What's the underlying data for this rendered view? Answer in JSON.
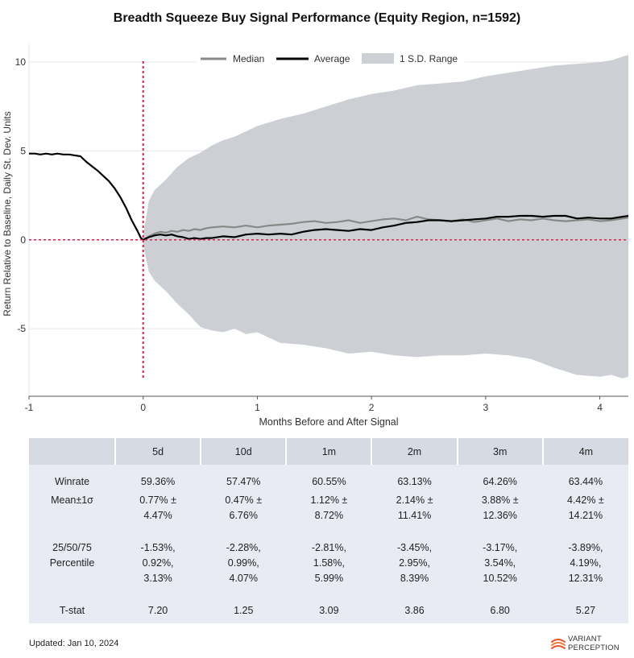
{
  "title": "Breadth Squeeze Buy Signal Performance (Equity Region, n=1592)",
  "chart_data": {
    "type": "line",
    "title": "Breadth Squeeze Buy Signal Performance (Equity Region, n=1592)",
    "xlabel": "Months Before and After Signal",
    "ylabel": "Return Relative to Baseline, Daily St. Dev. Units",
    "xlim": [
      -1,
      4.25
    ],
    "ylim": [
      -8.8,
      11
    ],
    "x_ticks": [
      -1,
      0,
      1,
      2,
      3,
      4
    ],
    "y_ticks": [
      -5,
      0,
      5,
      10
    ],
    "grid": "horizontal",
    "legend_position": "top-center",
    "signal_line_x": 0,
    "zero_line_y": 0,
    "series": [
      {
        "name": "Median",
        "color": "#888888",
        "x": [
          0,
          0.05,
          0.1,
          0.15,
          0.2,
          0.25,
          0.3,
          0.35,
          0.4,
          0.45,
          0.5,
          0.55,
          0.6,
          0.7,
          0.8,
          0.9,
          1.0,
          1.1,
          1.2,
          1.3,
          1.4,
          1.5,
          1.6,
          1.7,
          1.8,
          1.9,
          2.0,
          2.1,
          2.2,
          2.3,
          2.4,
          2.5,
          2.6,
          2.7,
          2.8,
          2.9,
          3.0,
          3.1,
          3.2,
          3.3,
          3.4,
          3.5,
          3.6,
          3.7,
          3.8,
          3.9,
          4.0,
          4.1,
          4.2,
          4.25
        ],
        "values": [
          0.0,
          0.2,
          0.35,
          0.45,
          0.4,
          0.5,
          0.45,
          0.55,
          0.5,
          0.6,
          0.55,
          0.65,
          0.7,
          0.75,
          0.7,
          0.8,
          0.7,
          0.8,
          0.85,
          0.9,
          1.0,
          1.05,
          0.95,
          1.0,
          1.1,
          0.95,
          1.05,
          1.15,
          1.2,
          1.1,
          1.3,
          1.15,
          1.1,
          1.05,
          1.15,
          1.0,
          1.1,
          1.2,
          1.05,
          1.15,
          1.1,
          1.2,
          1.1,
          1.05,
          1.1,
          1.15,
          1.05,
          1.1,
          1.2,
          1.25
        ]
      },
      {
        "name": "Average",
        "color": "#000000",
        "x": [
          -1,
          -0.95,
          -0.9,
          -0.85,
          -0.8,
          -0.75,
          -0.7,
          -0.65,
          -0.6,
          -0.55,
          -0.5,
          -0.45,
          -0.4,
          -0.35,
          -0.3,
          -0.25,
          -0.2,
          -0.15,
          -0.1,
          -0.05,
          -0.02,
          0,
          0.05,
          0.1,
          0.15,
          0.2,
          0.25,
          0.3,
          0.35,
          0.4,
          0.45,
          0.5,
          0.55,
          0.6,
          0.7,
          0.8,
          0.9,
          1.0,
          1.1,
          1.2,
          1.3,
          1.4,
          1.5,
          1.6,
          1.7,
          1.8,
          1.9,
          2.0,
          2.1,
          2.2,
          2.3,
          2.4,
          2.5,
          2.6,
          2.7,
          2.8,
          2.9,
          3.0,
          3.1,
          3.2,
          3.3,
          3.4,
          3.5,
          3.6,
          3.7,
          3.8,
          3.9,
          4.0,
          4.1,
          4.2,
          4.25
        ],
        "values": [
          4.85,
          4.85,
          4.8,
          4.85,
          4.8,
          4.85,
          4.8,
          4.8,
          4.75,
          4.7,
          4.4,
          4.15,
          3.9,
          3.6,
          3.3,
          2.9,
          2.4,
          1.8,
          1.1,
          0.5,
          0.1,
          0.0,
          0.15,
          0.25,
          0.3,
          0.25,
          0.3,
          0.2,
          0.15,
          0.05,
          0.1,
          0.05,
          0.1,
          0.1,
          0.2,
          0.15,
          0.3,
          0.35,
          0.3,
          0.35,
          0.3,
          0.45,
          0.55,
          0.6,
          0.55,
          0.5,
          0.6,
          0.55,
          0.7,
          0.8,
          0.95,
          1.0,
          1.1,
          1.1,
          1.05,
          1.1,
          1.15,
          1.2,
          1.3,
          1.3,
          1.35,
          1.35,
          1.3,
          1.35,
          1.35,
          1.2,
          1.25,
          1.2,
          1.2,
          1.3,
          1.35
        ]
      },
      {
        "name": "1 S.D. Range",
        "color": "#ccd0d5",
        "type": "area",
        "x": [
          0,
          0.05,
          0.1,
          0.2,
          0.3,
          0.4,
          0.5,
          0.6,
          0.7,
          0.8,
          0.9,
          1.0,
          1.2,
          1.4,
          1.6,
          1.8,
          2.0,
          2.2,
          2.4,
          2.6,
          2.8,
          3.0,
          3.2,
          3.4,
          3.6,
          3.8,
          4.0,
          4.1,
          4.2,
          4.25
        ],
        "upper": [
          0.3,
          2.2,
          2.8,
          3.4,
          4.1,
          4.6,
          4.9,
          5.3,
          5.6,
          5.8,
          6.1,
          6.4,
          6.8,
          7.1,
          7.5,
          7.9,
          8.2,
          8.4,
          8.7,
          8.8,
          8.9,
          9.2,
          9.4,
          9.6,
          9.8,
          9.9,
          10.0,
          10.1,
          10.3,
          10.4
        ],
        "lower": [
          -0.3,
          -1.8,
          -2.3,
          -2.9,
          -3.6,
          -4.2,
          -4.9,
          -5.1,
          -5.2,
          -5.0,
          -5.3,
          -5.2,
          -5.8,
          -5.9,
          -6.1,
          -6.4,
          -6.3,
          -6.5,
          -6.6,
          -6.5,
          -6.5,
          -6.4,
          -6.5,
          -6.7,
          -7.2,
          -7.6,
          -7.7,
          -7.6,
          -7.8,
          -7.7
        ]
      }
    ]
  },
  "table": {
    "headers": [
      "",
      "5d",
      "10d",
      "1m",
      "2m",
      "3m",
      "4m"
    ],
    "rows": [
      {
        "label": [
          "Winrate"
        ],
        "cells": [
          [
            "59.36%"
          ],
          [
            "57.47%"
          ],
          [
            "60.55%"
          ],
          [
            "63.13%"
          ],
          [
            "64.26%"
          ],
          [
            "63.44%"
          ]
        ]
      },
      {
        "label": [
          "Mean±1σ"
        ],
        "cells": [
          [
            "0.77% ±",
            "4.47%"
          ],
          [
            "0.47% ±",
            "6.76%"
          ],
          [
            "1.12% ±",
            "8.72%"
          ],
          [
            "2.14% ±",
            "11.41%"
          ],
          [
            "3.88% ±",
            "12.36%"
          ],
          [
            "4.42% ±",
            "14.21%"
          ]
        ]
      },
      {
        "label": [
          "25/50/75",
          "Percentile"
        ],
        "cells": [
          [
            "-1.53%,",
            "0.92%,",
            "3.13%"
          ],
          [
            "-2.28%,",
            "0.99%,",
            "4.07%"
          ],
          [
            "-2.81%,",
            "1.58%,",
            "5.99%"
          ],
          [
            "-3.45%,",
            "2.95%,",
            "8.39%"
          ],
          [
            "-3.17%,",
            "3.54%,",
            "10.52%"
          ],
          [
            "-3.89%,",
            "4.19%,",
            "12.31%"
          ]
        ]
      },
      {
        "label": [
          "T-stat"
        ],
        "cells": [
          [
            "7.20"
          ],
          [
            "1.25"
          ],
          [
            "3.09"
          ],
          [
            "3.86"
          ],
          [
            "6.80"
          ],
          [
            "5.27"
          ]
        ]
      }
    ]
  },
  "footer": {
    "updated": "Updated: Jan 10, 2024",
    "brand_line1": "VARIANT",
    "brand_line2": "PERCEPTION",
    "brand_color": "#e8502a"
  }
}
